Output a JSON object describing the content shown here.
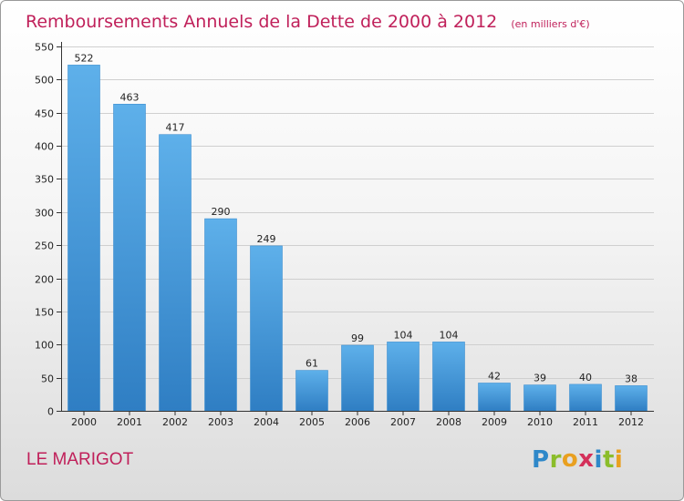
{
  "chart_data": {
    "type": "bar",
    "title": "Remboursements Annuels de la Dette de 2000 à 2012",
    "unit": "(en milliers d'€)",
    "categories": [
      "2000",
      "2001",
      "2002",
      "2003",
      "2004",
      "2005",
      "2006",
      "2007",
      "2008",
      "2009",
      "2010",
      "2011",
      "2012"
    ],
    "values": [
      522,
      463,
      417,
      290,
      249,
      61,
      99,
      104,
      104,
      42,
      39,
      40,
      38
    ],
    "ylim": [
      0,
      550
    ],
    "yticks": [
      0,
      50,
      100,
      150,
      200,
      250,
      300,
      350,
      400,
      450,
      500,
      550
    ],
    "grid": true,
    "xlabel": "",
    "ylabel": ""
  },
  "commune": "LE MARIGOT",
  "logo": {
    "letters": [
      "P",
      "r",
      "o",
      "x",
      "i",
      "t",
      "i"
    ],
    "colors": [
      "#2f88c9",
      "#8bbd2b",
      "#e9a020",
      "#d4305a",
      "#2f88c9",
      "#8bbd2b",
      "#e9a020"
    ]
  },
  "colors": {
    "bar_top": "#5eb0ea",
    "bar_bottom": "#2f7ec3",
    "title": "#c0205a"
  }
}
